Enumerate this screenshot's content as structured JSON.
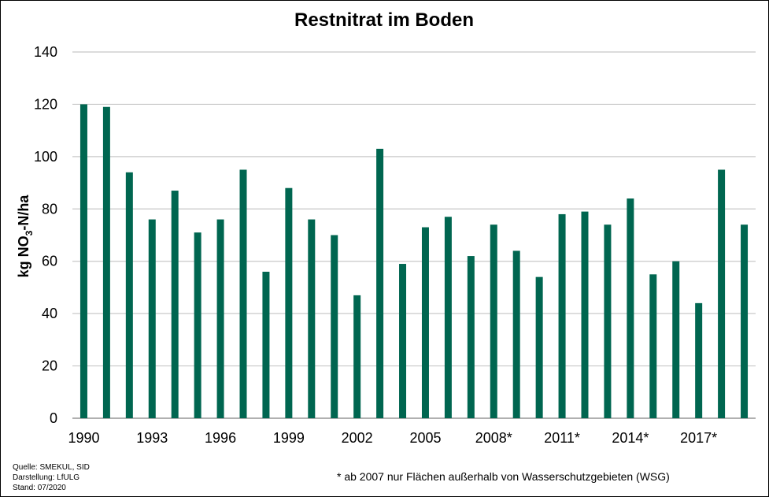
{
  "chart_data": {
    "type": "bar",
    "title": "Restnitrat im Boden",
    "ylabel": {
      "main": "kg NO",
      "sub": "3",
      "rest": "-N/ha"
    },
    "ylim": [
      0,
      140
    ],
    "yticks": [
      0,
      20,
      40,
      60,
      80,
      100,
      120,
      140
    ],
    "grid": true,
    "bar_color": "#006650",
    "x": [
      1990,
      1991,
      1992,
      1993,
      1994,
      1995,
      1996,
      1997,
      1998,
      1999,
      2000,
      2001,
      2002,
      2003,
      2004,
      2005,
      2006,
      2007,
      2008,
      2009,
      2010,
      2011,
      2012,
      2013,
      2014,
      2015,
      2016,
      2017,
      2018,
      2019
    ],
    "values": [
      120,
      119,
      94,
      76,
      87,
      71,
      76,
      95,
      56,
      88,
      76,
      70,
      47,
      103,
      59,
      73,
      77,
      62,
      74,
      64,
      54,
      78,
      79,
      74,
      84,
      55,
      60,
      44,
      95,
      74
    ],
    "x_tick_labels": [
      {
        "index": 0,
        "label": "1990"
      },
      {
        "index": 3,
        "label": "1993"
      },
      {
        "index": 6,
        "label": "1996"
      },
      {
        "index": 9,
        "label": "1999"
      },
      {
        "index": 12,
        "label": "2002"
      },
      {
        "index": 15,
        "label": "2005"
      },
      {
        "index": 18,
        "label": "2008*"
      },
      {
        "index": 21,
        "label": "2011*"
      },
      {
        "index": 24,
        "label": "2014*"
      },
      {
        "index": 27,
        "label": "2017*"
      }
    ],
    "footnote": "* ab 2007 nur Flächen außerhalb von Wasserschutzgebieten (WSG)"
  },
  "source": {
    "line1": "Quelle: SMEKUL,  SID",
    "line2": "Darstellung: LfULG",
    "line3": "Stand: 07/2020"
  }
}
